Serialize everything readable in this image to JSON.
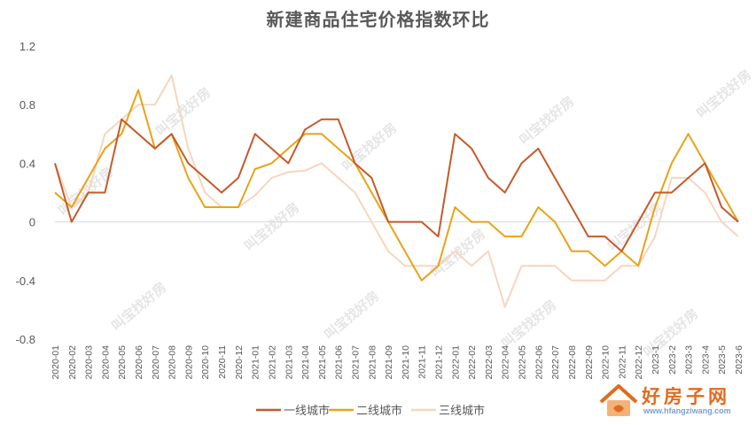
{
  "chart_data": {
    "type": "line",
    "title": "新建商品住宅价格指数环比",
    "ylim": [
      -0.8,
      1.2
    ],
    "yticks": [
      "1.2",
      "0.8",
      "0.4",
      "0",
      "-0.4",
      "-0.8"
    ],
    "ytick_values": [
      1.2,
      0.8,
      0.4,
      0,
      -0.4,
      -0.8
    ],
    "legend_position": "bottom",
    "grid": false,
    "x": [
      "2020-01",
      "2020-02",
      "2020-03",
      "2020-04",
      "2020-05",
      "2020-06",
      "2020-07",
      "2020-08",
      "2020-09",
      "2020-10",
      "2020-11",
      "2020-12",
      "2021-01",
      "2021-02",
      "2021-03",
      "2021-04",
      "2021-05",
      "2021-06",
      "2021-07",
      "2021-08",
      "2021-09",
      "2021-10",
      "2021-11",
      "2021-12",
      "2022-01",
      "2022-02",
      "2022-03",
      "2022-04",
      "2022-05",
      "2022-06",
      "2022-07",
      "2022-08",
      "2022-09",
      "2022-10",
      "2022-11",
      "2022-12",
      "2023-1",
      "2023-2",
      "2023-3",
      "2023-4",
      "2023-5",
      "2023-6"
    ],
    "series": [
      {
        "name": "一线城市",
        "color": "#c55a2a",
        "values": [
          0.4,
          0.0,
          0.2,
          0.2,
          0.7,
          0.6,
          0.5,
          0.6,
          0.4,
          0.3,
          0.2,
          0.3,
          0.6,
          0.5,
          0.4,
          0.63,
          0.7,
          0.7,
          0.4,
          0.3,
          0.0,
          0.0,
          0.0,
          -0.1,
          0.6,
          0.5,
          0.3,
          0.2,
          0.4,
          0.5,
          0.3,
          0.1,
          -0.1,
          -0.1,
          -0.2,
          0.0,
          0.2,
          0.2,
          0.3,
          0.4,
          0.1,
          0.0
        ]
      },
      {
        "name": "二线城市",
        "color": "#e8a317",
        "values": [
          0.2,
          0.1,
          0.3,
          0.5,
          0.6,
          0.9,
          0.5,
          0.6,
          0.3,
          0.1,
          0.1,
          0.1,
          0.36,
          0.4,
          0.5,
          0.6,
          0.6,
          0.5,
          0.4,
          0.2,
          0.0,
          -0.2,
          -0.4,
          -0.3,
          0.1,
          0.0,
          0.0,
          -0.1,
          -0.1,
          0.1,
          0.0,
          -0.2,
          -0.2,
          -0.3,
          -0.2,
          -0.3,
          0.1,
          0.4,
          0.6,
          0.4,
          0.2,
          0.0
        ]
      },
      {
        "name": "三线城市",
        "color": "#f6d6bf",
        "values": [
          0.4,
          0.1,
          0.2,
          0.6,
          0.7,
          0.8,
          0.8,
          1.0,
          0.5,
          0.2,
          0.1,
          0.1,
          0.18,
          0.3,
          0.34,
          0.35,
          0.4,
          0.3,
          0.2,
          0.0,
          -0.2,
          -0.3,
          -0.3,
          -0.3,
          -0.2,
          -0.3,
          -0.2,
          -0.58,
          -0.3,
          -0.3,
          -0.3,
          -0.4,
          -0.4,
          -0.4,
          -0.3,
          -0.3,
          -0.1,
          0.3,
          0.3,
          0.2,
          0.0,
          -0.1
        ]
      }
    ]
  },
  "watermark": {
    "text": "叫宝找好房"
  },
  "logo": {
    "name": "好房子网",
    "url": "www.hfangziwang.com"
  }
}
